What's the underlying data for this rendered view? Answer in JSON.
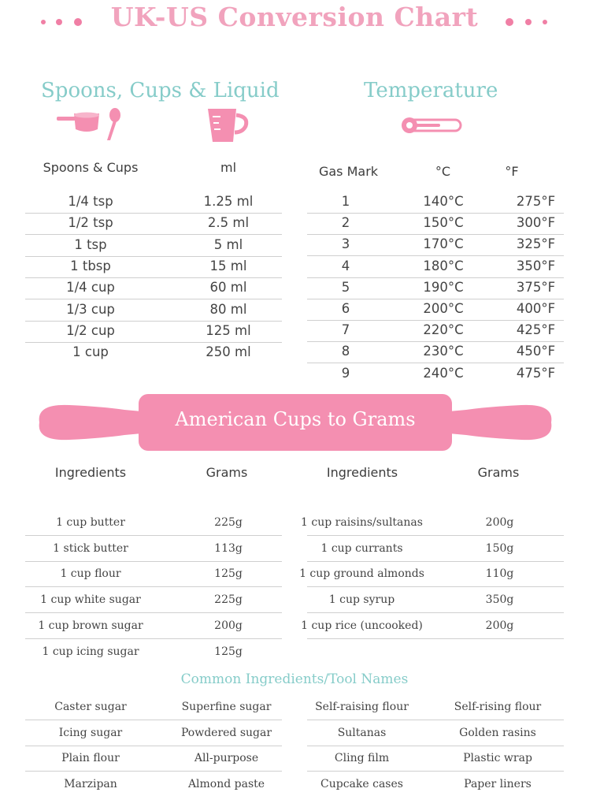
{
  "title": "UK-US Conversion Chart",
  "spoons": {
    "heading": "Spoons, Cups & Liquid",
    "headers": [
      "Spoons & Cups",
      "ml"
    ],
    "rows": [
      [
        "1/4 tsp",
        "1.25 ml"
      ],
      [
        "1/2 tsp",
        "2.5 ml"
      ],
      [
        "1 tsp",
        "5 ml"
      ],
      [
        "1 tbsp",
        "15 ml"
      ],
      [
        "1/4 cup",
        "60 ml"
      ],
      [
        "1/3 cup",
        "80 ml"
      ],
      [
        "1/2 cup",
        "125 ml"
      ],
      [
        "1 cup",
        "250 ml"
      ]
    ]
  },
  "temperature": {
    "heading": "Temperature",
    "headers": [
      "Gas Mark",
      "°C",
      "°F"
    ],
    "rows": [
      [
        "1",
        "140°C",
        "275°F"
      ],
      [
        "2",
        "150°C",
        "300°F"
      ],
      [
        "3",
        "170°C",
        "325°F"
      ],
      [
        "4",
        "180°C",
        "350°F"
      ],
      [
        "5",
        "190°C",
        "375°F"
      ],
      [
        "6",
        "200°C",
        "400°F"
      ],
      [
        "7",
        "220°C",
        "425°F"
      ],
      [
        "8",
        "230°C",
        "450°F"
      ],
      [
        "9",
        "240°C",
        "475°F"
      ]
    ]
  },
  "grams": {
    "banner": "American Cups to Grams",
    "headers": [
      "Ingredients",
      "Grams",
      "Ingredients",
      "Grams"
    ],
    "left_rows": [
      [
        "1 cup butter",
        "225g"
      ],
      [
        "1 stick butter",
        "113g"
      ],
      [
        "1 cup flour",
        "125g"
      ],
      [
        "1 cup white sugar",
        "225g"
      ],
      [
        "1 cup brown sugar",
        "200g"
      ],
      [
        "1 cup icing sugar",
        "125g"
      ]
    ],
    "right_rows": [
      [
        "1 cup raisins/sultanas",
        "200g"
      ],
      [
        "1 cup currants",
        "150g"
      ],
      [
        "1 cup ground almonds",
        "110g"
      ],
      [
        "1 cup syrup",
        "350g"
      ],
      [
        "1 cup rice (uncooked)",
        "200g"
      ]
    ]
  },
  "names": {
    "heading": "Common Ingredients/Tool Names",
    "left_rows": [
      [
        "Caster sugar",
        "Superfine sugar"
      ],
      [
        "Icing sugar",
        "Powdered sugar"
      ],
      [
        "Plain flour",
        "All-purpose"
      ],
      [
        "Marzipan",
        "Almond paste"
      ]
    ],
    "right_rows": [
      [
        "Self-raising flour",
        "Self-rising flour"
      ],
      [
        "Sultanas",
        "Golden rasins"
      ],
      [
        "Cling film",
        "Plastic wrap"
      ],
      [
        "Cupcake cases",
        "Paper liners"
      ]
    ]
  },
  "colors": {
    "pink": "#f48fb1",
    "teal": "#86ccc9"
  },
  "icons": [
    "measuring-spoon-icon",
    "spoon-icon",
    "measuring-jug-icon",
    "thermometer-icon",
    "rolling-pin-icon"
  ]
}
